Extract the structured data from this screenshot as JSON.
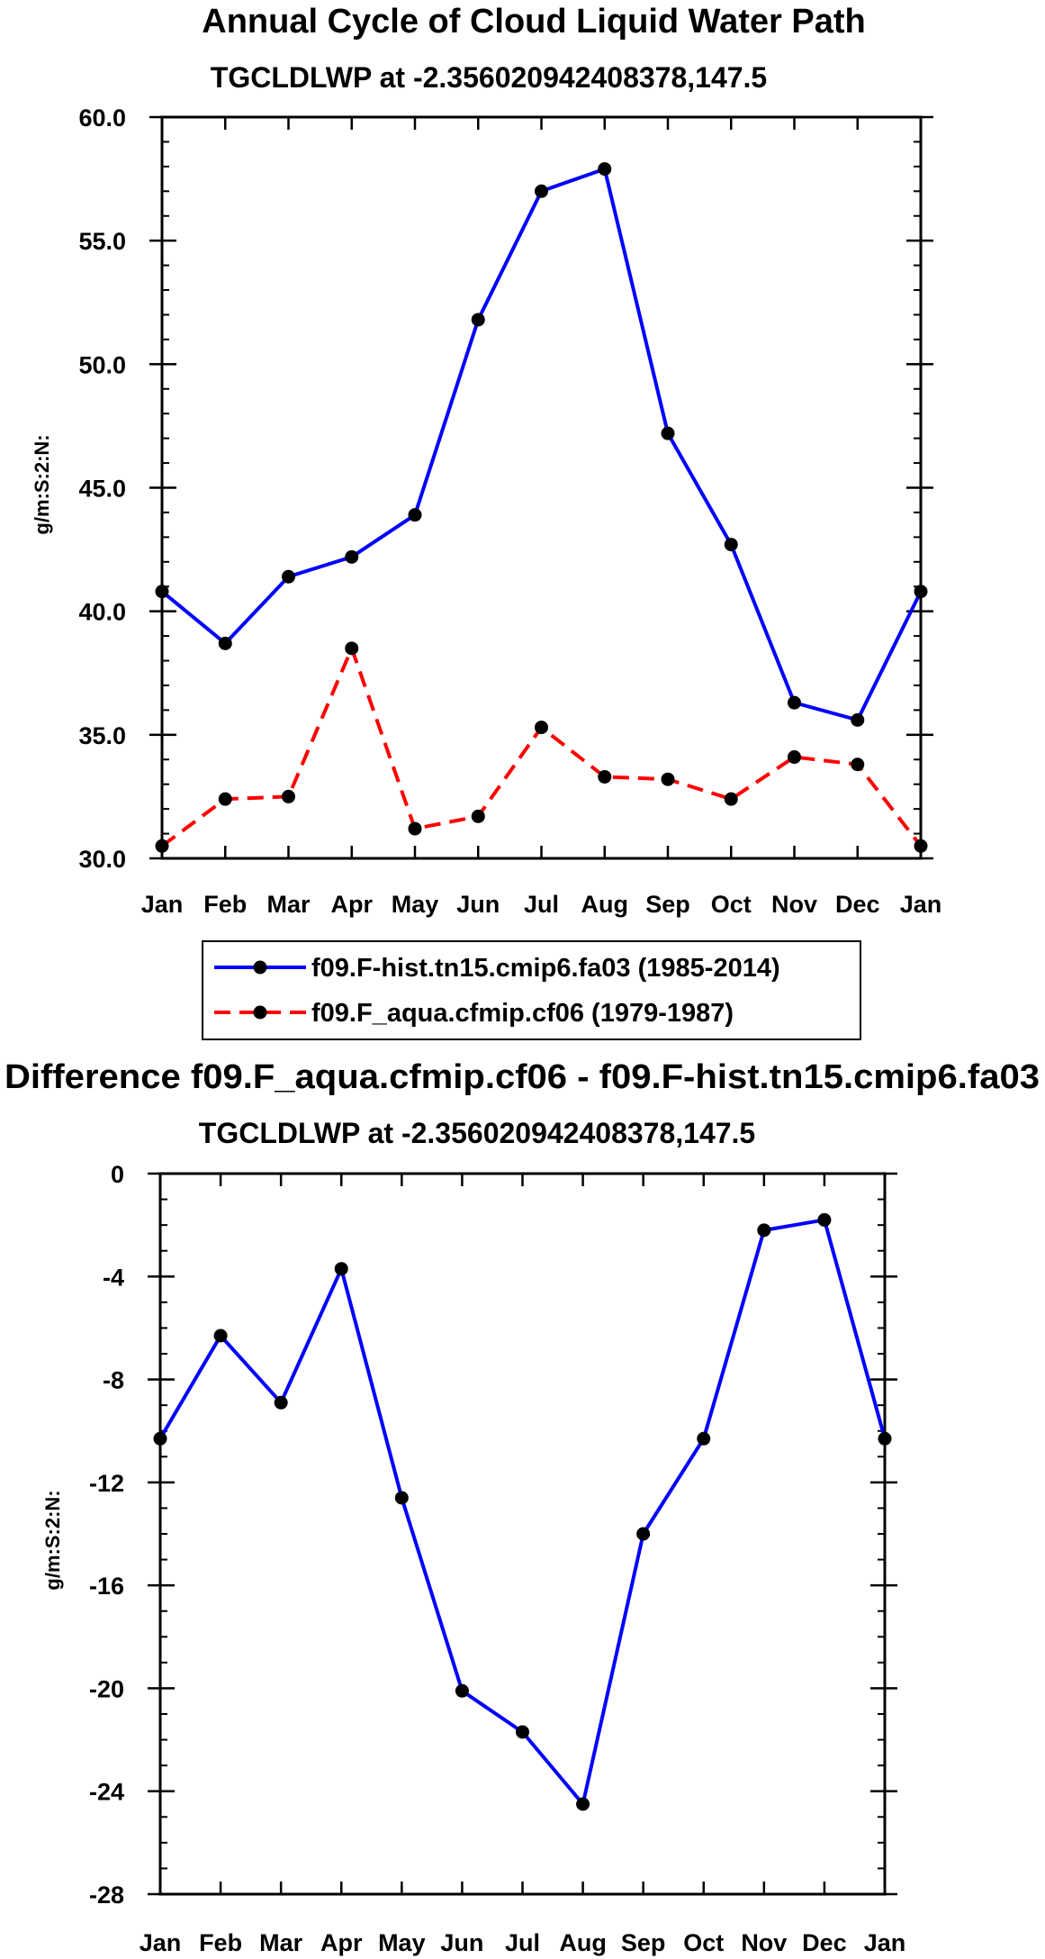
{
  "chart_data": [
    {
      "type": "line",
      "title": "Annual Cycle of Cloud Liquid Water Path",
      "subtitle": "TGCLDLWP at -2.356020942408378,147.5",
      "xlabel": "",
      "ylabel": "g/m:S:2:N:",
      "categories": [
        "Jan",
        "Feb",
        "Mar",
        "Apr",
        "May",
        "Jun",
        "Jul",
        "Aug",
        "Sep",
        "Oct",
        "Nov",
        "Dec",
        "Jan"
      ],
      "ylim": [
        30.0,
        60.0
      ],
      "yticks": [
        "30.0",
        "35.0",
        "40.0",
        "45.0",
        "50.0",
        "55.0",
        "60.0"
      ],
      "grid": false,
      "legend_position": "below",
      "series": [
        {
          "name": "f09.F-hist.tn15.cmip6.fa03 (1985-2014)",
          "color": "#0000ff",
          "dash": "solid",
          "values": [
            40.8,
            38.7,
            41.4,
            42.2,
            43.9,
            51.8,
            57.0,
            57.9,
            47.2,
            42.7,
            36.3,
            35.6,
            40.8
          ]
        },
        {
          "name": "f09.F_aqua.cfmip.cf06 (1979-1987)",
          "color": "#ff0000",
          "dash": "dashed",
          "values": [
            30.5,
            32.4,
            32.5,
            38.5,
            31.2,
            31.7,
            35.3,
            33.3,
            33.2,
            32.4,
            34.1,
            33.8,
            30.5
          ]
        }
      ]
    },
    {
      "type": "line",
      "title": "Difference f09.F_aqua.cfmip.cf06 - f09.F-hist.tn15.cmip6.fa03",
      "subtitle": "TGCLDLWP at -2.356020942408378,147.5",
      "xlabel": "",
      "ylabel": "g/m:S:2:N:",
      "categories": [
        "Jan",
        "Feb",
        "Mar",
        "Apr",
        "May",
        "Jun",
        "Jul",
        "Aug",
        "Sep",
        "Oct",
        "Nov",
        "Dec",
        "Jan"
      ],
      "ylim": [
        -28,
        0
      ],
      "yticks": [
        "-28",
        "-24",
        "-20",
        "-16",
        "-12",
        "-8",
        "-4",
        "0"
      ],
      "grid": false,
      "series": [
        {
          "name": "Difference",
          "color": "#0000ff",
          "dash": "solid",
          "values": [
            -10.3,
            -6.3,
            -8.9,
            -3.7,
            -12.6,
            -20.1,
            -21.7,
            -24.5,
            -14.0,
            -10.3,
            -2.2,
            -1.8,
            -10.3
          ]
        }
      ]
    }
  ]
}
